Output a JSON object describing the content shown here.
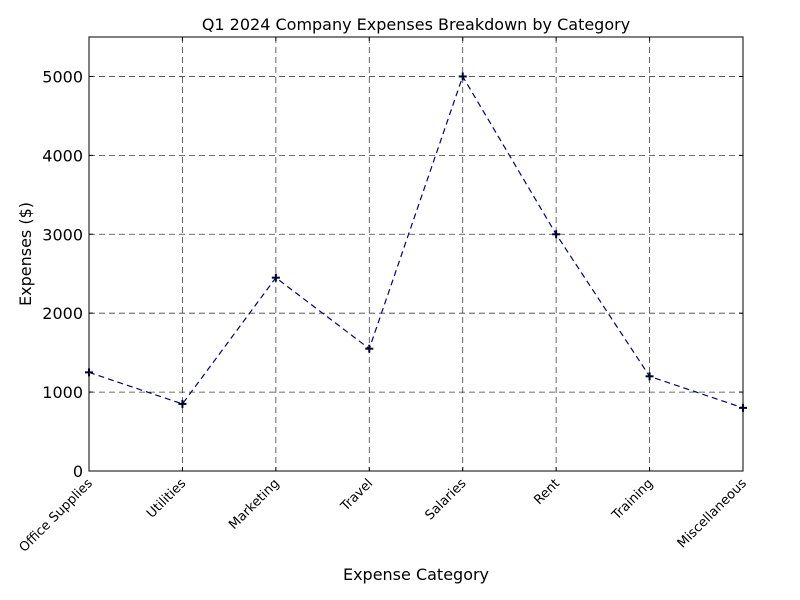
{
  "chart_data": {
    "type": "line",
    "title": "Q1 2024 Company Expenses Breakdown by Category",
    "xlabel": "Expense Category",
    "ylabel": "Expenses ($)",
    "categories": [
      "Office Supplies",
      "Utilities",
      "Marketing",
      "Travel",
      "Salaries",
      "Rent",
      "Training",
      "Miscellaneous"
    ],
    "values": [
      1250,
      850,
      2450,
      1550,
      5000,
      3000,
      1200,
      800
    ],
    "ylim": [
      0,
      5500
    ],
    "yticks": [
      0,
      1000,
      2000,
      3000,
      4000,
      5000
    ],
    "grid": true,
    "line_style": "dashed",
    "marker": "plus",
    "line_color": "#000080",
    "marker_color": "#000033"
  }
}
